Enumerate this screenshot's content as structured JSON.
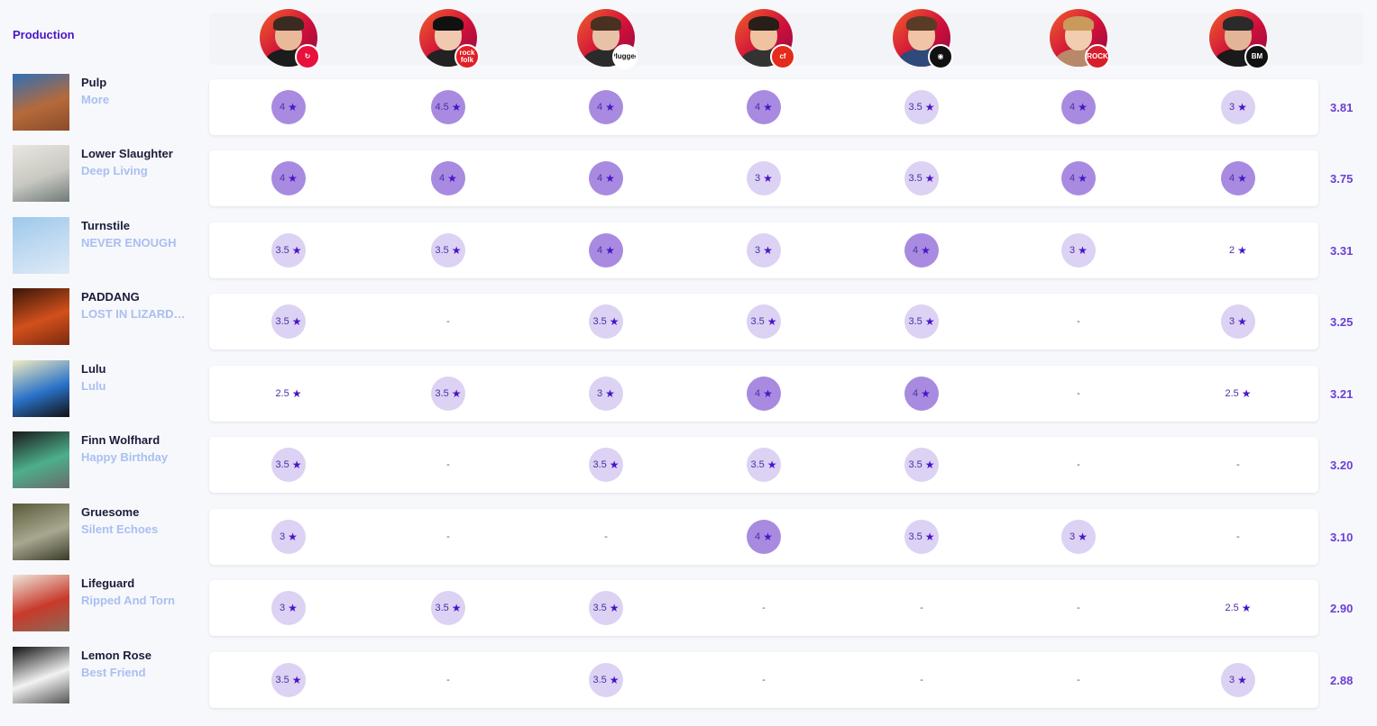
{
  "category": "Production",
  "critics": [
    {
      "name": "critic-1",
      "skin": "#e9b99a",
      "hair": "#3b2a20",
      "shirt": "#1c1c1c",
      "badge_color": "#e8113c",
      "badge_text": "↻"
    },
    {
      "name": "critic-2",
      "skin": "#f0c9b0",
      "hair": "#111111",
      "shirt": "#222222",
      "badge_color": "#e21f26",
      "badge_text": "rock folk"
    },
    {
      "name": "critic-3",
      "skin": "#e8c2a6",
      "hair": "#4a3020",
      "shirt": "#2b2b2b",
      "badge_color": "#ffffff",
      "badge_text": "Plugged"
    },
    {
      "name": "critic-4",
      "skin": "#efc3a0",
      "hair": "#2a1f18",
      "shirt": "#333333",
      "badge_color": "#e42b1c",
      "badge_text": "cf"
    },
    {
      "name": "critic-5",
      "skin": "#f0c4a4",
      "hair": "#5a3b26",
      "shirt": "#2f4a7a",
      "badge_color": "#111111",
      "badge_text": "◉"
    },
    {
      "name": "critic-6",
      "skin": "#f3cdb0",
      "hair": "#c99a5c",
      "shirt": "#b88968",
      "badge_color": "#d81e2c",
      "badge_text": "ROCK"
    },
    {
      "name": "critic-7",
      "skin": "#e3b596",
      "hair": "#2a2a2a",
      "shirt": "#1a1a1a",
      "badge_color": "#111111",
      "badge_text": "BM"
    }
  ],
  "star_glyph": "★",
  "dash_glyph": "-",
  "rows": [
    {
      "artist": "Pulp",
      "album": "More",
      "cover": [
        "#2e6fb8",
        "#b56a3a",
        "#8a4b2a"
      ],
      "ratings": [
        "4",
        "4.5",
        "4",
        "4",
        "3.5",
        "4",
        "3"
      ],
      "avg": "3.81"
    },
    {
      "artist": "Lower Slaughter",
      "album": "Deep Living",
      "cover": [
        "#e8e6df",
        "#c9c9c2",
        "#6f7a78"
      ],
      "ratings": [
        "4",
        "4",
        "4",
        "3",
        "3.5",
        "4",
        "4"
      ],
      "avg": "3.75"
    },
    {
      "artist": "Turnstile",
      "album": "NEVER ENOUGH",
      "cover": [
        "#9ec8ea",
        "#c2dcf2",
        "#dfeaf6"
      ],
      "ratings": [
        "3.5",
        "3.5",
        "4",
        "3",
        "4",
        "3",
        "2"
      ],
      "avg": "3.31"
    },
    {
      "artist": "PADDANG",
      "album": "LOST IN LIZARDLAND",
      "cover": [
        "#3a1608",
        "#d2501c",
        "#7a2a10"
      ],
      "ratings": [
        "3.5",
        "-",
        "3.5",
        "3.5",
        "3.5",
        "-",
        "3"
      ],
      "avg": "3.25"
    },
    {
      "artist": "Lulu",
      "album": "Lulu",
      "cover": [
        "#f2ecc0",
        "#2a72c8",
        "#111111"
      ],
      "ratings": [
        "2.5",
        "3.5",
        "3",
        "4",
        "4",
        "-",
        "2.5"
      ],
      "avg": "3.21"
    },
    {
      "artist": "Finn Wolfhard",
      "album": "Happy Birthday",
      "cover": [
        "#1a1a1a",
        "#4caf8c",
        "#6a6a6a"
      ],
      "ratings": [
        "3.5",
        "-",
        "3.5",
        "3.5",
        "3.5",
        "-",
        "-"
      ],
      "avg": "3.20"
    },
    {
      "artist": "Gruesome",
      "album": "Silent Echoes",
      "cover": [
        "#5a5a3a",
        "#a8a890",
        "#3a3a2a"
      ],
      "ratings": [
        "3",
        "-",
        "-",
        "4",
        "3.5",
        "3",
        "-"
      ],
      "avg": "3.10"
    },
    {
      "artist": "Lifeguard",
      "album": "Ripped And Torn",
      "cover": [
        "#efe6dc",
        "#c83a2a",
        "#8a6a5a"
      ],
      "ratings": [
        "3",
        "3.5",
        "3.5",
        "-",
        "-",
        "-",
        "2.5"
      ],
      "avg": "2.90"
    },
    {
      "artist": "Lemon Rose",
      "album": "Best Friend",
      "cover": [
        "#111111",
        "#f2f2f2",
        "#555555"
      ],
      "ratings": [
        "3.5",
        "-",
        "3.5",
        "-",
        "-",
        "-",
        "3"
      ],
      "avg": "2.88"
    }
  ]
}
